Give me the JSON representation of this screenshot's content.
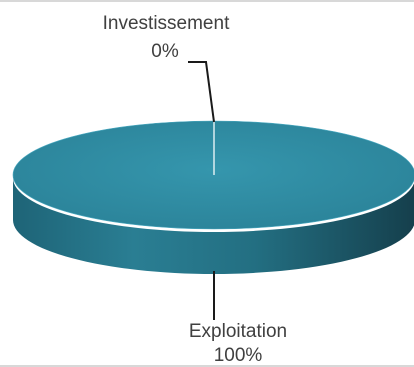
{
  "chart_data": {
    "type": "pie",
    "style": "3d",
    "categories": [
      "Investissement",
      "Exploitation"
    ],
    "values": [
      0,
      100
    ],
    "data_labels": [
      "0%",
      "100%"
    ],
    "colors": {
      "Investissement": "#2f8ca3",
      "Exploitation": "#2f8ca3"
    },
    "legend": "none"
  },
  "colors": {
    "top_face": "#2f8ca3",
    "top_face_light": "#3a9cb4",
    "side_dark": "#1b5567",
    "side_mid": "#267588",
    "leader_line": "#1a1a1a",
    "text": "#404040"
  }
}
